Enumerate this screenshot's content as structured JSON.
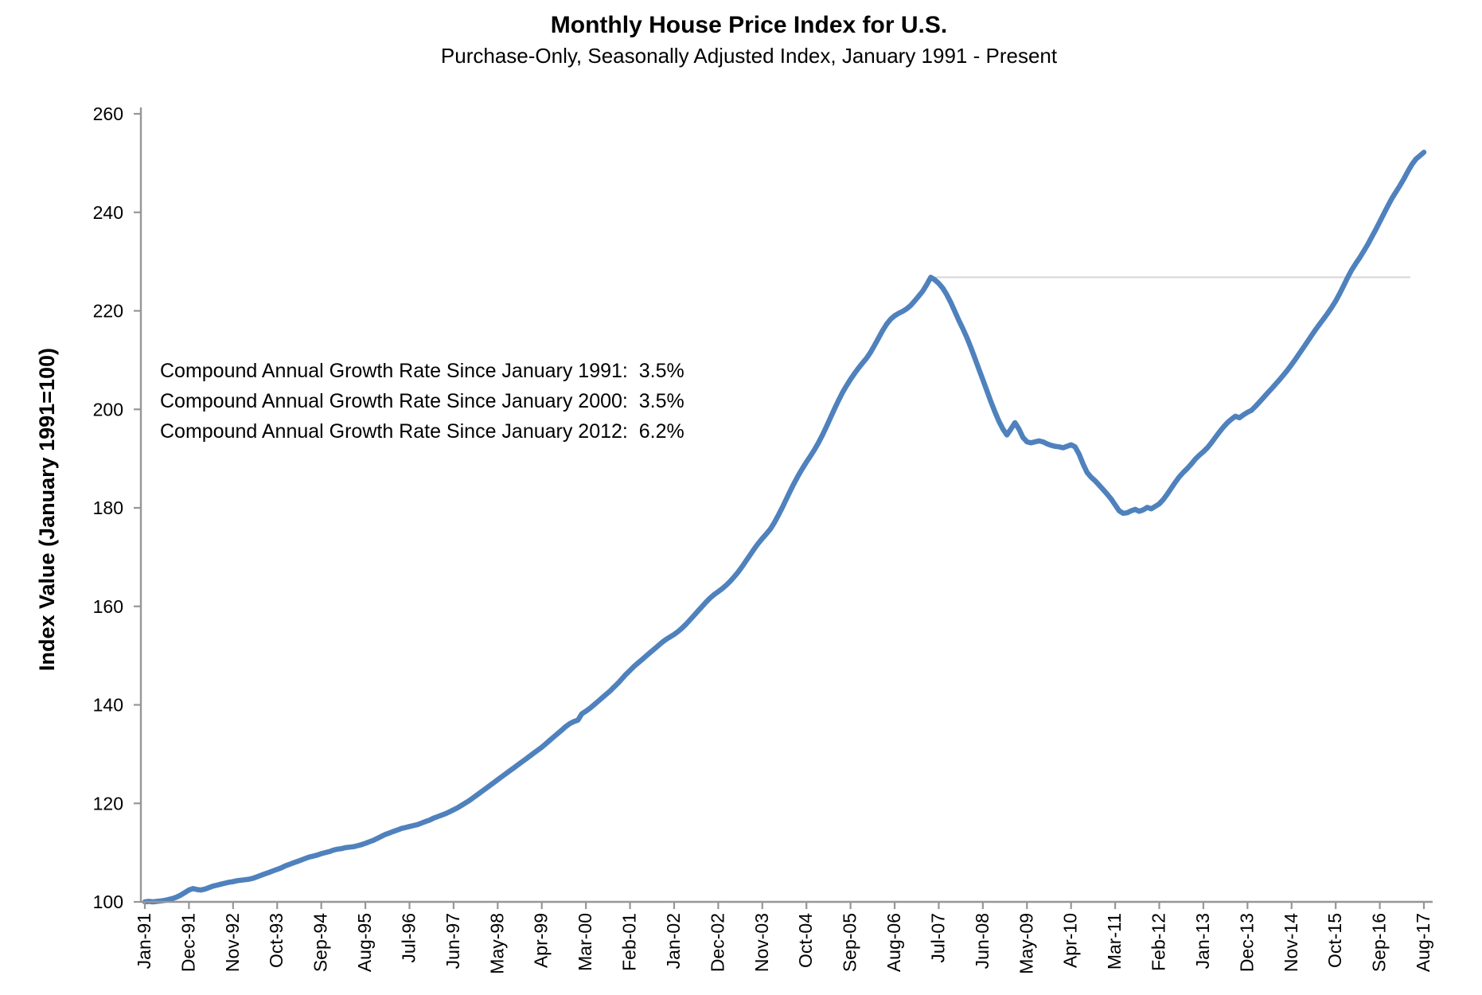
{
  "header": {
    "title": "Monthly House Price Index for U.S.",
    "subtitle": "Purchase-Only, Seasonally Adjusted Index, January 1991 - Present"
  },
  "annotations": [
    "Compound Annual Growth Rate Since January 1991:  3.5%",
    "Compound Annual Growth Rate Since January 2000:  3.5%",
    "Compound Annual Growth Rate Since January 2012:  6.2%"
  ],
  "chart_data": {
    "type": "line",
    "title": "Monthly House Price Index for U.S.",
    "subtitle": "Purchase-Only, Seasonally Adjusted Index, January 1991 - Present",
    "xlabel": "",
    "ylabel": "Index Value (January 1991=100)",
    "ylim": [
      100,
      260
    ],
    "yticks": [
      100,
      120,
      140,
      160,
      180,
      200,
      220,
      240,
      260
    ],
    "grid": false,
    "legend": "none",
    "x_tick_labels": [
      "Jan-91",
      "Dec-91",
      "Nov-92",
      "Oct-93",
      "Sep-94",
      "Aug-95",
      "Jul-96",
      "Jun-97",
      "May-98",
      "Apr-99",
      "Mar-00",
      "Feb-01",
      "Jan-02",
      "Dec-02",
      "Nov-03",
      "Oct-04",
      "Sep-05",
      "Aug-06",
      "Jul-07",
      "Jun-08",
      "May-09",
      "Apr-10",
      "Mar-11",
      "Feb-12",
      "Jan-13",
      "Dec-13",
      "Nov-14",
      "Oct-15",
      "Sep-16",
      "Aug-17"
    ],
    "x_tick_interval_months": 11,
    "series": [
      {
        "name": "U.S. purchase-only seasonally adjusted house price index",
        "start": "Jan-1991",
        "end": "Aug-2017",
        "frequency": "monthly",
        "values": [
          100.0,
          100.1,
          100.0,
          100.1,
          100.2,
          100.3,
          100.5,
          100.7,
          101.0,
          101.4,
          101.9,
          102.4,
          102.7,
          102.5,
          102.4,
          102.6,
          102.9,
          103.2,
          103.4,
          103.6,
          103.8,
          104.0,
          104.1,
          104.3,
          104.4,
          104.5,
          104.6,
          104.8,
          105.1,
          105.4,
          105.7,
          106.0,
          106.3,
          106.6,
          106.9,
          107.3,
          107.6,
          107.9,
          108.2,
          108.5,
          108.8,
          109.1,
          109.3,
          109.5,
          109.8,
          110.0,
          110.2,
          110.5,
          110.7,
          110.8,
          111.0,
          111.1,
          111.2,
          111.4,
          111.6,
          111.9,
          112.2,
          112.5,
          112.9,
          113.3,
          113.7,
          114.0,
          114.3,
          114.6,
          114.9,
          115.1,
          115.3,
          115.5,
          115.7,
          116.0,
          116.3,
          116.6,
          117.0,
          117.3,
          117.6,
          117.9,
          118.3,
          118.7,
          119.1,
          119.6,
          120.1,
          120.6,
          121.2,
          121.8,
          122.4,
          123.0,
          123.6,
          124.2,
          124.8,
          125.4,
          126.0,
          126.6,
          127.2,
          127.8,
          128.4,
          129.0,
          129.6,
          130.2,
          130.8,
          131.4,
          132.1,
          132.8,
          133.5,
          134.2,
          134.9,
          135.6,
          136.2,
          136.6,
          136.9,
          138.2,
          138.7,
          139.3,
          140.0,
          140.7,
          141.4,
          142.1,
          142.8,
          143.6,
          144.4,
          145.3,
          146.2,
          147.0,
          147.8,
          148.5,
          149.2,
          149.9,
          150.6,
          151.3,
          152.0,
          152.7,
          153.3,
          153.8,
          154.3,
          154.9,
          155.6,
          156.4,
          157.3,
          158.2,
          159.1,
          160.0,
          160.9,
          161.7,
          162.4,
          163.0,
          163.6,
          164.3,
          165.1,
          166.0,
          167.0,
          168.1,
          169.3,
          170.5,
          171.7,
          172.8,
          173.8,
          174.7,
          175.7,
          177.0,
          178.5,
          180.1,
          181.8,
          183.5,
          185.1,
          186.6,
          188.0,
          189.3,
          190.5,
          191.8,
          193.2,
          194.8,
          196.5,
          198.3,
          200.1,
          201.8,
          203.4,
          204.8,
          206.1,
          207.3,
          208.4,
          209.4,
          210.4,
          211.6,
          213.0,
          214.5,
          216.0,
          217.3,
          218.3,
          219.0,
          219.5,
          219.9,
          220.4,
          221.1,
          222.0,
          223.0,
          224.0,
          225.3,
          226.8,
          226.3,
          225.6,
          224.6,
          223.3,
          221.7,
          219.9,
          218.1,
          216.4,
          214.6,
          212.6,
          210.4,
          208.2,
          206.0,
          203.8,
          201.6,
          199.5,
          197.6,
          196.0,
          194.8,
          196.0,
          197.3,
          196.0,
          194.3,
          193.4,
          193.2,
          193.4,
          193.6,
          193.4,
          193.0,
          192.7,
          192.5,
          192.4,
          192.2,
          192.5,
          192.8,
          192.4,
          190.9,
          188.9,
          187.2,
          186.2,
          185.5,
          184.6,
          183.7,
          182.8,
          181.8,
          180.6,
          179.4,
          178.9,
          179.0,
          179.4,
          179.7,
          179.3,
          179.6,
          180.1,
          179.8,
          180.3,
          180.8,
          181.7,
          182.8,
          184.0,
          185.2,
          186.3,
          187.2,
          188.0,
          188.9,
          189.9,
          190.7,
          191.4,
          192.2,
          193.2,
          194.3,
          195.4,
          196.4,
          197.3,
          198.0,
          198.6,
          198.3,
          198.9,
          199.4,
          199.8,
          200.6,
          201.5,
          202.4,
          203.3,
          204.2,
          205.1,
          206.0,
          207.0,
          208.0,
          209.1,
          210.2,
          211.4,
          212.6,
          213.8,
          215.0,
          216.2,
          217.3,
          218.4,
          219.5,
          220.7,
          222.0,
          223.5,
          225.1,
          226.8,
          228.3,
          229.6,
          230.8,
          232.1,
          233.5,
          235.0,
          236.5,
          238.1,
          239.7,
          241.3,
          242.8,
          244.1,
          245.4,
          246.8,
          248.3,
          249.7,
          250.8,
          251.5,
          252.2
        ]
      }
    ],
    "reference_line": {
      "value": 226.8,
      "from_month_index": 196,
      "note": "horizontal light-gray line at the 2007 peak level extending to the right"
    },
    "colors": {
      "line": "#4f81bd",
      "reference": "#d9d9d9",
      "axis": "#969696",
      "text": "#000000"
    }
  }
}
